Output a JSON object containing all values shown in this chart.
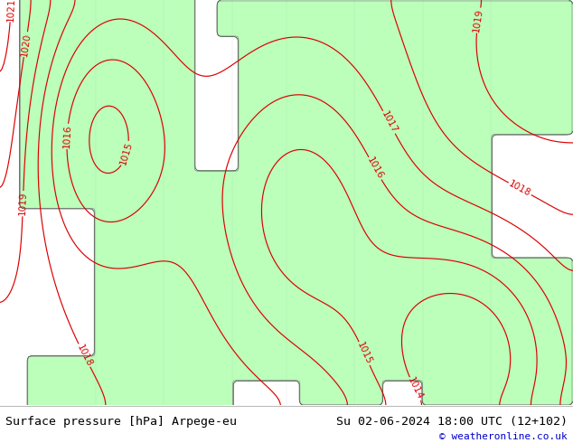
{
  "title_left": "Surface pressure [hPa] Arpege-eu",
  "title_right": "Su 02-06-2024 18:00 UTC (12+102)",
  "copyright": "© weatheronline.co.uk",
  "ocean_color": "#e8e8e8",
  "land_color": "#bbffbb",
  "border_color": "#888888",
  "contour_color": "#dd0000",
  "label_color": "#dd0000",
  "footer_bg": "#ffffff",
  "footer_text_color": "#000000",
  "copyright_color": "#0000cc",
  "font_size_footer": 9.5,
  "font_size_labels": 7.5,
  "figsize": [
    6.34,
    4.9
  ],
  "dpi": 100,
  "map_extent": [
    -12,
    30,
    42,
    58.5
  ]
}
